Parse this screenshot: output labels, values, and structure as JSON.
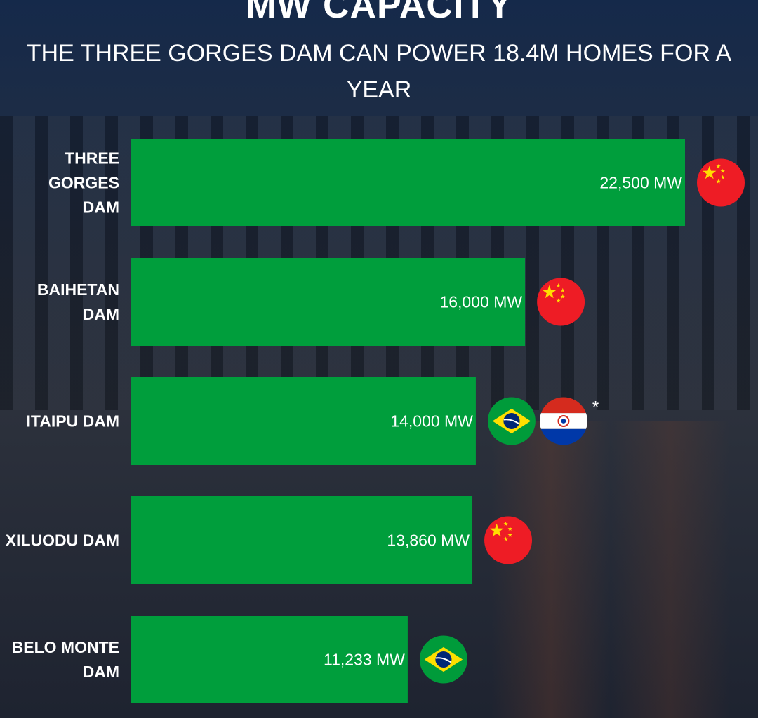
{
  "chart_data": {
    "type": "bar",
    "orientation": "horizontal",
    "title": "MW CAPACITY",
    "subtitle": "THE THREE GORGES DAM CAN POWER 18.4M HOMES FOR A YEAR",
    "categories": [
      [
        "THREE",
        "GORGES",
        "DAM"
      ],
      [
        "BAIHETAN",
        "DAM"
      ],
      [
        "ITAIPU DAM"
      ],
      [
        "XILUODU DAM"
      ],
      [
        "BELO MONTE",
        "DAM"
      ]
    ],
    "values": [
      22500,
      16000,
      14000,
      13860,
      11233
    ],
    "labels": [
      "22,500 MW",
      "16,000 MW",
      "14,000 MW",
      "13,860 MW",
      "11,233 MW"
    ],
    "flags": [
      [
        "china"
      ],
      [
        "china"
      ],
      [
        "brazil",
        "paraguay"
      ],
      [
        "china"
      ],
      [
        "brazil"
      ]
    ],
    "annotations": [
      {
        "bar": 2,
        "text": "*"
      }
    ],
    "xlim": [
      0,
      22500
    ],
    "grid": false,
    "bar_color": "#009e3c"
  }
}
